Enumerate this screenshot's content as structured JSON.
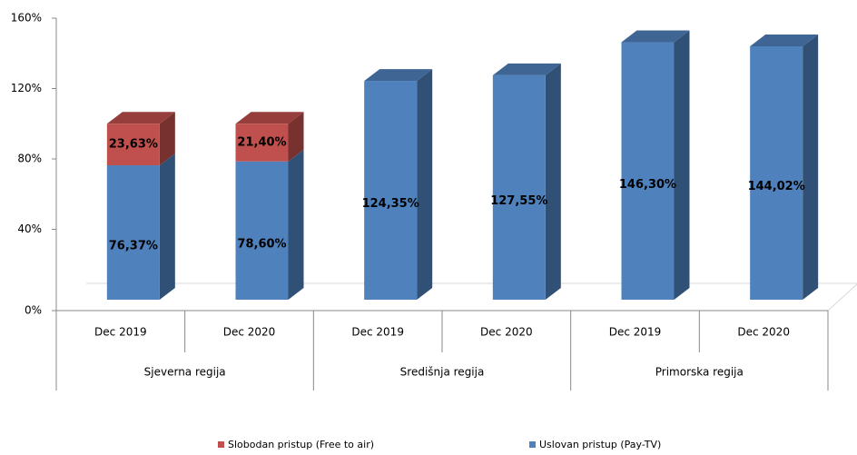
{
  "chart_data": {
    "type": "bar3d_stacked",
    "groups": [
      {
        "label": "Sjeverna regija",
        "categories": [
          "Dec 2019",
          "Dec 2020"
        ]
      },
      {
        "label": "Središnja regija",
        "categories": [
          "Dec 2019",
          "Dec 2020"
        ]
      },
      {
        "label": "Primorska regija",
        "categories": [
          "Dec 2019",
          "Dec 2020"
        ]
      }
    ],
    "series": [
      {
        "name": "Uslovan pristup (Pay-TV)",
        "color": "#4f81bd",
        "values": [
          76.37,
          78.6,
          124.35,
          127.55,
          146.3,
          144.02
        ],
        "value_labels": [
          "76,37%",
          "78,60%",
          "124,35%",
          "127,55%",
          "146,30%",
          "144,02%"
        ]
      },
      {
        "name": "Slobodan pristup (Free to air)",
        "color": "#c0504d",
        "values": [
          23.63,
          21.4,
          null,
          null,
          null,
          null
        ],
        "value_labels": [
          "23,63%",
          "21,40%",
          null,
          null,
          null,
          null
        ]
      }
    ],
    "ylim": [
      0,
      160
    ],
    "yticks": [
      {
        "value": 0,
        "label": "0%"
      },
      {
        "value": 40,
        "label": "40%"
      },
      {
        "value": 80,
        "label": "80%"
      },
      {
        "value": 120,
        "label": "120%"
      },
      {
        "value": 160,
        "label": "160%"
      }
    ],
    "legend": "bottom"
  }
}
